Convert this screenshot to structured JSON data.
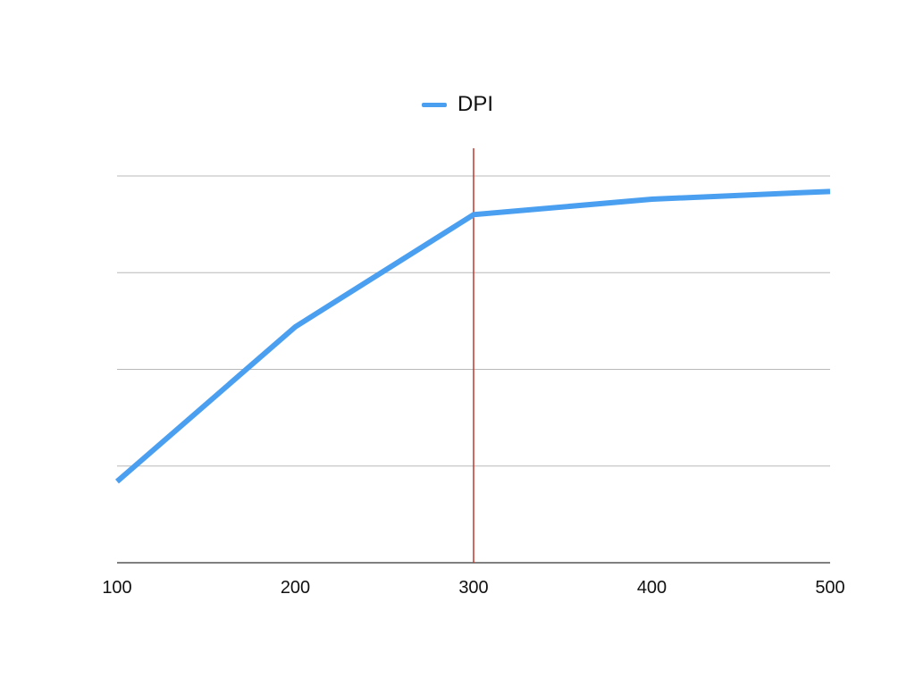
{
  "chart_data": {
    "type": "line",
    "title": "",
    "xlabel": "",
    "ylabel": "",
    "x": [
      100,
      200,
      300,
      400,
      500
    ],
    "x_tick_labels": [
      "100",
      "200",
      "300",
      "400",
      "500"
    ],
    "series": [
      {
        "name": "DPI",
        "values": [
          0.42,
          1.22,
          1.8,
          1.88,
          1.92
        ],
        "color": "#4a9ff0"
      }
    ],
    "ylim": [
      0,
      2
    ],
    "ygrid_values": [
      0.5,
      1.0,
      1.5,
      2.0
    ],
    "y_tick_labels_visible": false,
    "grid": true,
    "legend_position": "top-center",
    "reference_line": {
      "orientation": "vertical",
      "x": 300,
      "color": "#c0392b"
    }
  },
  "legend": {
    "label": "DPI",
    "color": "#4a9ff0"
  }
}
